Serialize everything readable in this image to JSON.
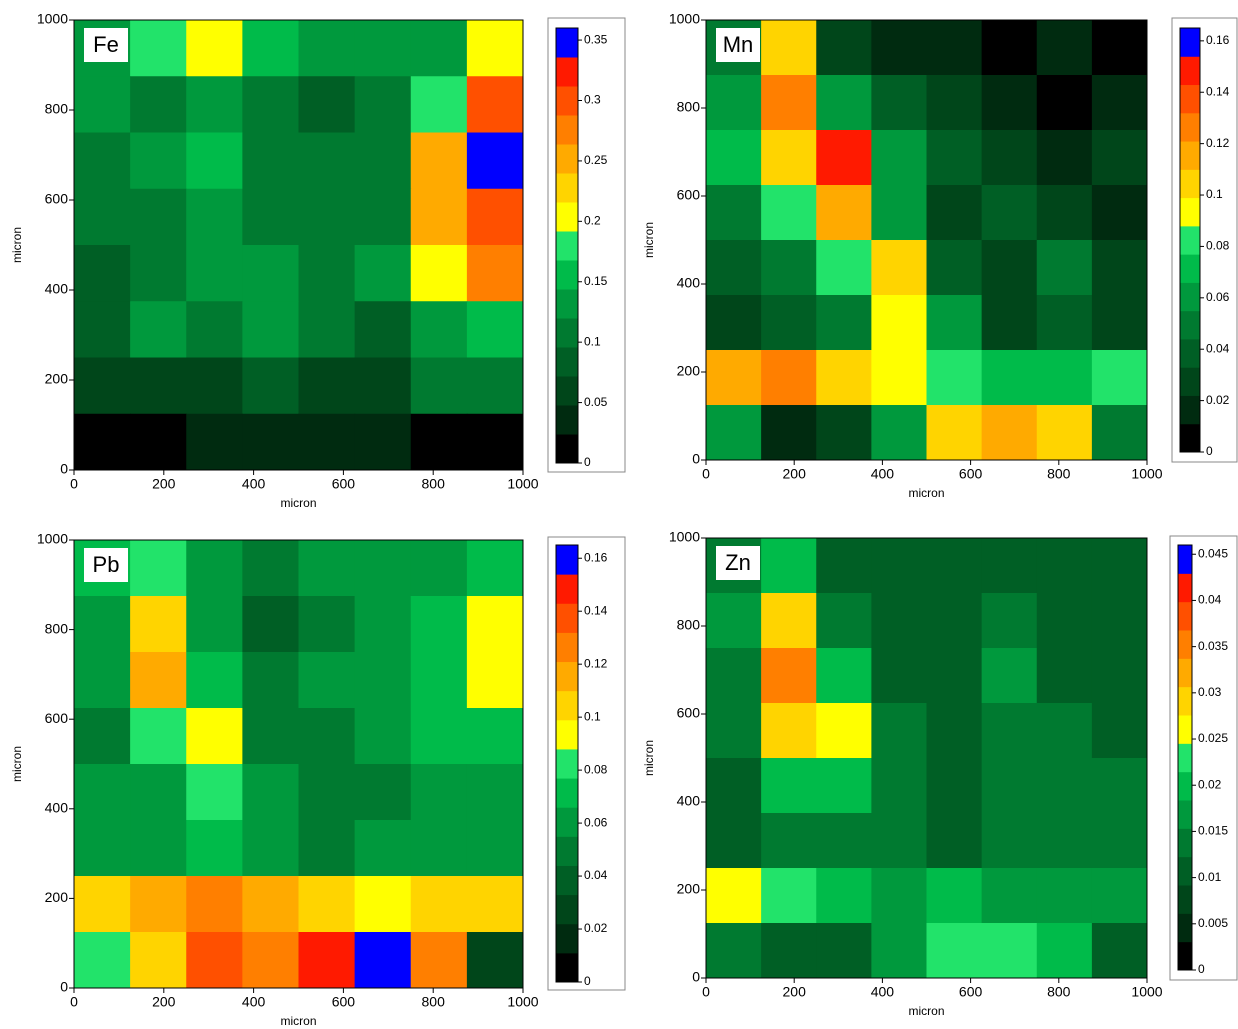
{
  "chart_data": [
    {
      "type": "heatmap",
      "title": "Fe",
      "xlabel": "micron",
      "ylabel": "micron",
      "xlim": [
        0,
        1000
      ],
      "ylim": [
        0,
        1000
      ],
      "xticks": [
        0,
        200,
        400,
        600,
        800,
        1000
      ],
      "yticks": [
        0,
        200,
        400,
        600,
        800,
        1000
      ],
      "zlim": [
        0,
        0.36
      ],
      "zticks": [
        0,
        0.05,
        0.1,
        0.15,
        0.2,
        0.25,
        0.3,
        0.35
      ],
      "colors": [
        "#000000",
        "#002b10",
        "#00461a",
        "#005f25",
        "#007a30",
        "#00993d",
        "#00bb4a",
        "#22e36a",
        "#ffff00",
        "#ffd400",
        "#ffaa00",
        "#ff7f00",
        "#ff5000",
        "#ff1a00",
        "#0000ff"
      ],
      "x": [
        62.5,
        187.5,
        312.5,
        437.5,
        562.5,
        687.5,
        812.5,
        937.5
      ],
      "y": [
        937.5,
        812.5,
        687.5,
        562.5,
        437.5,
        312.5,
        187.5,
        62.5
      ],
      "values": [
        [
          0.12,
          0.18,
          0.2,
          0.15,
          0.12,
          0.12,
          0.14,
          0.2
        ],
        [
          0.12,
          0.1,
          0.12,
          0.1,
          0.08,
          0.1,
          0.18,
          0.3
        ],
        [
          0.1,
          0.12,
          0.15,
          0.1,
          0.1,
          0.1,
          0.25,
          0.36
        ],
        [
          0.1,
          0.1,
          0.12,
          0.1,
          0.1,
          0.1,
          0.25,
          0.3
        ],
        [
          0.08,
          0.1,
          0.12,
          0.12,
          0.1,
          0.12,
          0.2,
          0.28
        ],
        [
          0.08,
          0.12,
          0.1,
          0.12,
          0.1,
          0.08,
          0.12,
          0.15
        ],
        [
          0.05,
          0.05,
          0.07,
          0.08,
          0.06,
          0.05,
          0.1,
          0.1
        ],
        [
          0.01,
          0.02,
          0.03,
          0.04,
          0.04,
          0.03,
          0.02,
          0.02
        ]
      ]
    },
    {
      "type": "heatmap",
      "title": "Mn",
      "xlabel": "micron",
      "ylabel": "micron",
      "xlim": [
        0,
        1000
      ],
      "ylim": [
        0,
        1000
      ],
      "xticks": [
        0,
        200,
        400,
        600,
        800,
        1000
      ],
      "yticks": [
        0,
        200,
        400,
        600,
        800,
        1000
      ],
      "zlim": [
        0,
        0.165
      ],
      "zticks": [
        0,
        0.02,
        0.04,
        0.06,
        0.08,
        0.1,
        0.12,
        0.14,
        0.16
      ],
      "colors": [
        "#000000",
        "#002b10",
        "#00461a",
        "#005f25",
        "#007a30",
        "#00993d",
        "#00bb4a",
        "#22e36a",
        "#ffff00",
        "#ffd400",
        "#ffaa00",
        "#ff7f00",
        "#ff5000",
        "#ff1a00",
        "#0000ff"
      ],
      "x": [
        62.5,
        187.5,
        312.5,
        437.5,
        562.5,
        687.5,
        812.5,
        937.5
      ],
      "y": [
        937.5,
        812.5,
        687.5,
        562.5,
        437.5,
        312.5,
        187.5,
        62.5
      ],
      "values": [
        [
          0.05,
          0.1,
          0.03,
          0.02,
          0.02,
          0.01,
          0.02,
          0.01
        ],
        [
          0.06,
          0.13,
          0.06,
          0.04,
          0.03,
          0.02,
          0.01,
          0.02
        ],
        [
          0.07,
          0.1,
          0.15,
          0.06,
          0.04,
          0.03,
          0.02,
          0.03
        ],
        [
          0.05,
          0.08,
          0.12,
          0.06,
          0.03,
          0.04,
          0.03,
          0.02
        ],
        [
          0.04,
          0.05,
          0.08,
          0.1,
          0.04,
          0.03,
          0.05,
          0.03
        ],
        [
          0.03,
          0.04,
          0.05,
          0.09,
          0.06,
          0.03,
          0.04,
          0.03
        ],
        [
          0.12,
          0.13,
          0.1,
          0.09,
          0.08,
          0.07,
          0.07,
          0.08
        ],
        [
          0.06,
          0.02,
          0.03,
          0.06,
          0.1,
          0.11,
          0.1,
          0.05
        ]
      ]
    },
    {
      "type": "heatmap",
      "title": "Pb",
      "xlabel": "micron",
      "ylabel": "micron",
      "xlim": [
        0,
        1000
      ],
      "ylim": [
        0,
        1000
      ],
      "xticks": [
        0,
        200,
        400,
        600,
        800,
        1000
      ],
      "yticks": [
        0,
        200,
        400,
        600,
        800,
        1000
      ],
      "zlim": [
        0,
        0.165
      ],
      "zticks": [
        0,
        0.02,
        0.04,
        0.06,
        0.08,
        0.1,
        0.12,
        0.14,
        0.16
      ],
      "colors": [
        "#000000",
        "#002b10",
        "#00461a",
        "#005f25",
        "#007a30",
        "#00993d",
        "#00bb4a",
        "#22e36a",
        "#ffff00",
        "#ffd400",
        "#ffaa00",
        "#ff7f00",
        "#ff5000",
        "#ff1a00",
        "#0000ff"
      ],
      "x": [
        62.5,
        187.5,
        312.5,
        437.5,
        562.5,
        687.5,
        812.5,
        937.5
      ],
      "y": [
        937.5,
        812.5,
        687.5,
        562.5,
        437.5,
        312.5,
        187.5,
        62.5
      ],
      "values": [
        [
          0.07,
          0.08,
          0.06,
          0.05,
          0.06,
          0.06,
          0.06,
          0.07
        ],
        [
          0.06,
          0.1,
          0.06,
          0.04,
          0.05,
          0.06,
          0.07,
          0.09
        ],
        [
          0.06,
          0.11,
          0.07,
          0.05,
          0.06,
          0.06,
          0.07,
          0.09
        ],
        [
          0.05,
          0.08,
          0.09,
          0.05,
          0.05,
          0.06,
          0.07,
          0.07
        ],
        [
          0.06,
          0.06,
          0.08,
          0.06,
          0.05,
          0.05,
          0.06,
          0.06
        ],
        [
          0.06,
          0.06,
          0.07,
          0.06,
          0.05,
          0.06,
          0.06,
          0.06
        ],
        [
          0.1,
          0.12,
          0.13,
          0.12,
          0.1,
          0.09,
          0.1,
          0.1
        ],
        [
          0.08,
          0.1,
          0.14,
          0.13,
          0.15,
          0.16,
          0.13,
          0.03
        ]
      ]
    },
    {
      "type": "heatmap",
      "title": "Zn",
      "xlabel": "micron",
      "ylabel": "micron",
      "xlim": [
        0,
        1000
      ],
      "ylim": [
        0,
        1000
      ],
      "xticks": [
        0,
        200,
        400,
        600,
        800,
        1000
      ],
      "yticks": [
        0,
        200,
        400,
        600,
        800,
        1000
      ],
      "zlim": [
        0,
        0.046
      ],
      "zticks": [
        0,
        0.005,
        0.01,
        0.015,
        0.02,
        0.025,
        0.03,
        0.035,
        0.04,
        0.045
      ],
      "colors": [
        "#000000",
        "#002b10",
        "#00461a",
        "#005f25",
        "#007a30",
        "#00993d",
        "#00bb4a",
        "#22e36a",
        "#ffff00",
        "#ffd400",
        "#ffaa00",
        "#ff7f00",
        "#ff5000",
        "#ff1a00",
        "#0000ff"
      ],
      "x": [
        62.5,
        187.5,
        312.5,
        437.5,
        562.5,
        687.5,
        812.5,
        937.5
      ],
      "y": [
        937.5,
        812.5,
        687.5,
        562.5,
        437.5,
        312.5,
        187.5,
        62.5
      ],
      "values": [
        [
          0.015,
          0.02,
          0.012,
          0.01,
          0.01,
          0.012,
          0.012,
          0.012
        ],
        [
          0.018,
          0.028,
          0.015,
          0.012,
          0.01,
          0.015,
          0.012,
          0.012
        ],
        [
          0.015,
          0.035,
          0.02,
          0.012,
          0.01,
          0.018,
          0.012,
          0.012
        ],
        [
          0.015,
          0.03,
          0.025,
          0.015,
          0.012,
          0.015,
          0.015,
          0.012
        ],
        [
          0.012,
          0.02,
          0.02,
          0.015,
          0.012,
          0.015,
          0.015,
          0.015
        ],
        [
          0.012,
          0.015,
          0.015,
          0.015,
          0.012,
          0.015,
          0.015,
          0.015
        ],
        [
          0.025,
          0.022,
          0.02,
          0.018,
          0.02,
          0.018,
          0.018,
          0.018
        ],
        [
          0.015,
          0.01,
          0.012,
          0.018,
          0.022,
          0.022,
          0.02,
          0.012
        ]
      ]
    }
  ]
}
